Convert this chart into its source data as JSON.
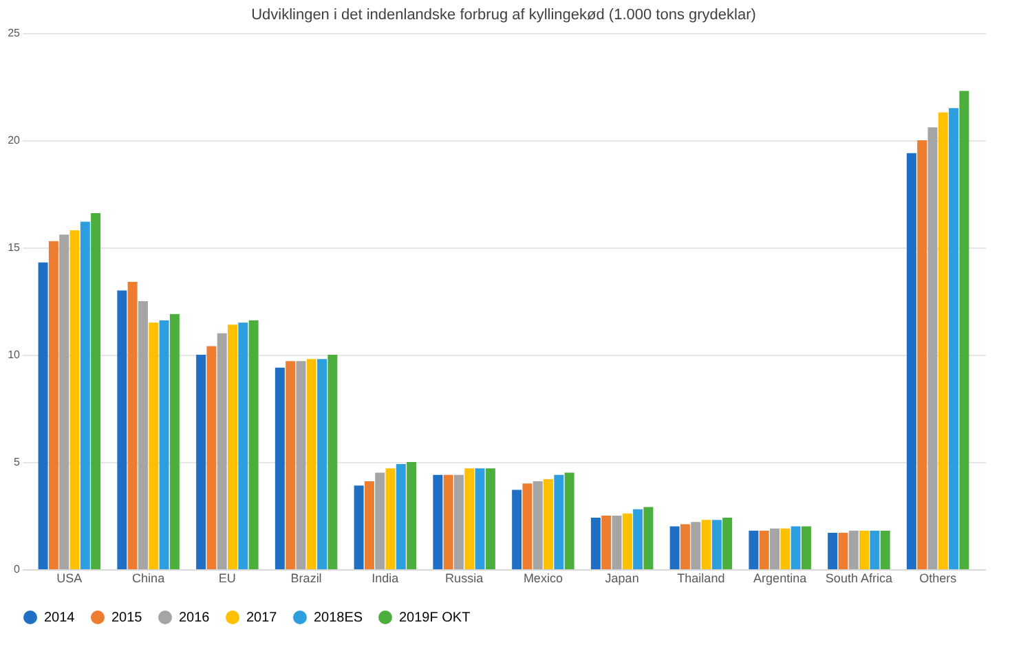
{
  "chart_data": {
    "type": "bar",
    "title": "Udviklingen i det indenlandske forbrug af kyllingekød (1.000 tons grydeklar)",
    "categories": [
      "USA",
      "China",
      "EU",
      "Brazil",
      "India",
      "Russia",
      "Mexico",
      "Japan",
      "Thailand",
      "Argentina",
      "South Africa",
      "Others"
    ],
    "series": [
      {
        "name": "2014",
        "color": "#1f6fc5",
        "values": [
          14.3,
          13.0,
          10.0,
          9.4,
          3.9,
          4.4,
          3.7,
          2.4,
          2.0,
          1.8,
          1.7,
          19.4
        ]
      },
      {
        "name": "2015",
        "color": "#ed7d31",
        "values": [
          15.3,
          13.4,
          10.4,
          9.7,
          4.1,
          4.4,
          4.0,
          2.5,
          2.1,
          1.8,
          1.7,
          20.0
        ]
      },
      {
        "name": "2016",
        "color": "#a5a5a5",
        "values": [
          15.6,
          12.5,
          11.0,
          9.7,
          4.5,
          4.4,
          4.1,
          2.5,
          2.2,
          1.9,
          1.8,
          20.6
        ]
      },
      {
        "name": "2017",
        "color": "#ffc000",
        "values": [
          15.8,
          11.5,
          11.4,
          9.8,
          4.7,
          4.7,
          4.2,
          2.6,
          2.3,
          1.9,
          1.8,
          21.3
        ]
      },
      {
        "name": "2018ES",
        "color": "#2e9fde",
        "values": [
          16.2,
          11.6,
          11.5,
          9.8,
          4.9,
          4.7,
          4.4,
          2.8,
          2.3,
          2.0,
          1.8,
          21.5
        ]
      },
      {
        "name": "2019F OKT",
        "color": "#4cae3c",
        "values": [
          16.6,
          11.9,
          11.6,
          10.0,
          5.0,
          4.7,
          4.5,
          2.9,
          2.4,
          2.0,
          1.8,
          22.3
        ]
      }
    ],
    "ylim": [
      0,
      25
    ],
    "yticks": [
      0,
      5,
      10,
      15,
      20,
      25
    ],
    "grid": "y",
    "legend": "bottom"
  }
}
